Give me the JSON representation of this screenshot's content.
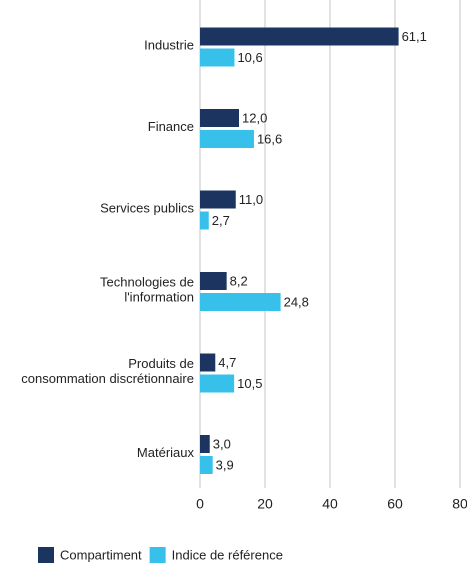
{
  "chart_data": {
    "type": "barh",
    "categories": [
      [
        "Industrie"
      ],
      [
        "Finance"
      ],
      [
        "Services publics"
      ],
      [
        "Technologies de",
        "l'information"
      ],
      [
        "Produits de",
        "consommation discrétionnaire"
      ],
      [
        "Matériaux"
      ]
    ],
    "series": [
      {
        "name": "Compartiment",
        "color": "#1b3560",
        "values": [
          61.1,
          12.0,
          11.0,
          8.2,
          4.7,
          3.0
        ],
        "value_labels": [
          "61,1",
          "12,0",
          "11,0",
          "8,2",
          "4,7",
          "3,0"
        ]
      },
      {
        "name": "Indice de référence",
        "color": "#37c1ea",
        "values": [
          10.6,
          16.6,
          2.7,
          24.8,
          10.5,
          3.9
        ],
        "value_labels": [
          "10,6",
          "16,6",
          "2,7",
          "24,8",
          "10,5",
          "3,9"
        ]
      }
    ],
    "xlim": [
      0,
      80
    ],
    "xticks": [
      0,
      20,
      40,
      60,
      80
    ],
    "grid": true
  }
}
